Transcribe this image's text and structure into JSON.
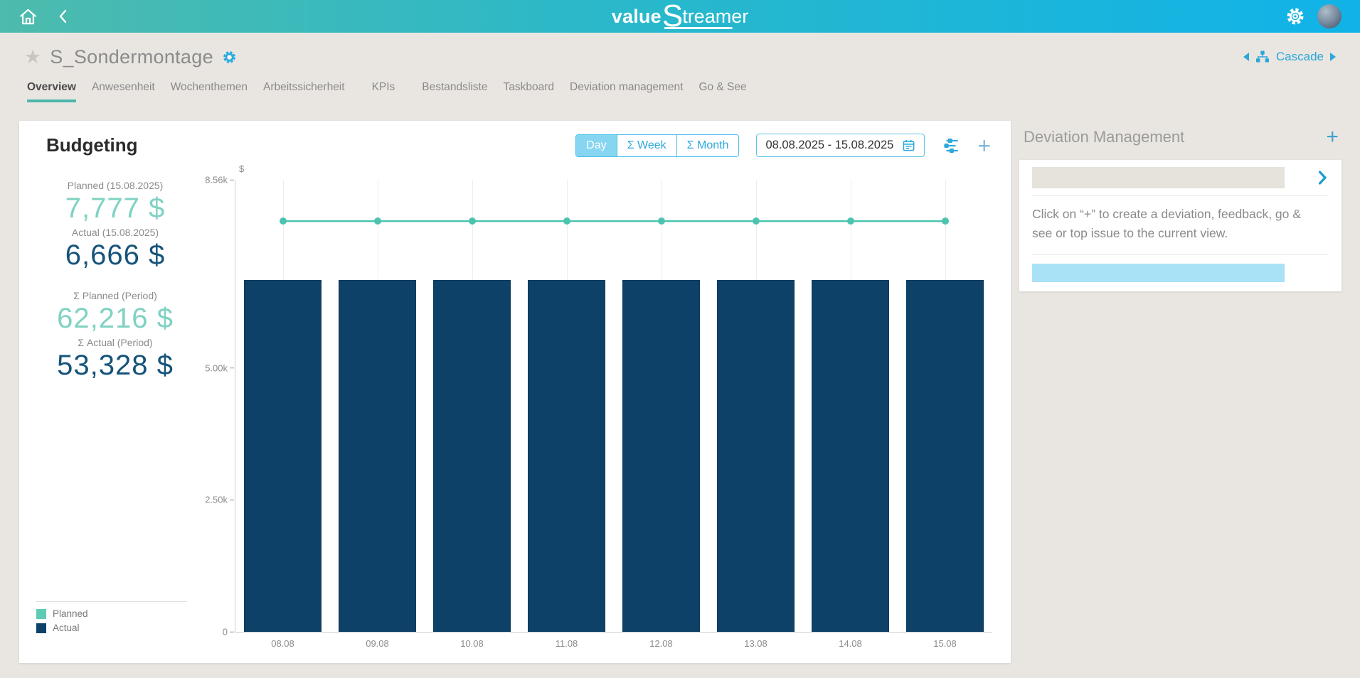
{
  "header": {
    "logo_value": "value",
    "logo_s": "S",
    "logo_rest": "treamer"
  },
  "titlebar": {
    "title": "S_Sondermontage",
    "cascade_label": "Cascade"
  },
  "tabs": [
    {
      "label": "Overview",
      "active": true
    },
    {
      "label": "Anwesenheit",
      "active": false
    },
    {
      "label": "Wochenthemen",
      "active": false
    },
    {
      "label": "Arbeitssicherheit",
      "active": false
    },
    {
      "label": "KPIs",
      "active": false
    },
    {
      "label": "Bestandsliste",
      "active": false
    },
    {
      "label": "Taskboard",
      "active": false
    },
    {
      "label": "Deviation management",
      "active": false
    },
    {
      "label": "Go & See",
      "active": false
    }
  ],
  "budgeting": {
    "title": "Budgeting",
    "toggles": [
      "Day",
      "Σ Week",
      "Σ Month"
    ],
    "active_toggle": "Day",
    "date_range": "08.08.2025 - 15.08.2025",
    "stats": [
      {
        "label": "Planned (15.08.2025)",
        "value": "7,777 $",
        "color": "#7fd2c2"
      },
      {
        "label": "Actual (15.08.2025)",
        "value": "6,666 $",
        "color": "#16537a"
      },
      {
        "label": "Σ Planned (Period)",
        "value": "62,216 $",
        "color": "#7fd2c2"
      },
      {
        "label": "Σ Actual (Period)",
        "value": "53,328 $",
        "color": "#16537a"
      }
    ],
    "legend": [
      {
        "label": "Planned",
        "color": "#5fcbb5"
      },
      {
        "label": "Actual",
        "color": "#0d4168"
      }
    ]
  },
  "chart_data": {
    "type": "bar",
    "categories": [
      "08.08",
      "09.08",
      "10.08",
      "11.08",
      "12.08",
      "13.08",
      "14.08",
      "15.08"
    ],
    "series": [
      {
        "name": "Planned",
        "type": "line",
        "color": "#4cc3ae",
        "values": [
          7777,
          7777,
          7777,
          7777,
          7777,
          7777,
          7777,
          7777
        ]
      },
      {
        "name": "Actual",
        "type": "bar",
        "color": "#0d4168",
        "values": [
          6666,
          6666,
          6666,
          6666,
          6666,
          6666,
          6666,
          6666
        ]
      }
    ],
    "title": "Budgeting",
    "xlabel": "",
    "ylabel": "$",
    "ylim": [
      0,
      8560
    ],
    "yticks": [
      {
        "label": "8.56k",
        "value": 8560
      },
      {
        "label": "5.00k",
        "value": 5000
      },
      {
        "label": "2.50k",
        "value": 2500
      },
      {
        "label": "0",
        "value": 0
      }
    ],
    "grid": "vertical-only",
    "legend_position": "bottom-left"
  },
  "deviation": {
    "title": "Deviation Management",
    "hint": "Click on “+” to create a deviation, feedback, go & see or top issue to the current view."
  },
  "icons": {
    "star": "★",
    "plus": "+"
  },
  "colors": {
    "header_gradient_left": "#4dbbad",
    "header_gradient_right": "#10b3e8",
    "accent_teal": "#4db6ac",
    "accent_blue": "#2da8dc",
    "toggle_active_bg": "#87d6f1",
    "page_background": "#e9e6e1",
    "bar_navy": "#0d4168",
    "line_teal": "#4cc3ae",
    "value_teal": "#7fd2c2",
    "value_navy": "#16537a"
  }
}
